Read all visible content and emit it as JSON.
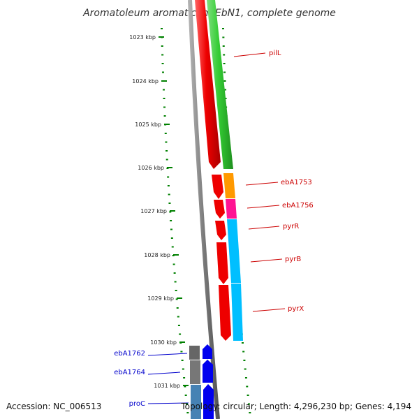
{
  "title": "Aromatoleum aromaticum EbN1, complete genome",
  "accession_text": "Accession: NC_006513",
  "summary_text": "Topology: circular; Length: 4,296,230 bp; Genes: 4,194",
  "ruler_ticks": [
    {
      "kbp": 1023,
      "label": "1023 kbp"
    },
    {
      "kbp": 1024,
      "label": "1024 kbp"
    },
    {
      "kbp": 1025,
      "label": "1025 kbp"
    },
    {
      "kbp": 1026,
      "label": "1026 kbp"
    },
    {
      "kbp": 1027,
      "label": "1027 kbp"
    },
    {
      "kbp": 1028,
      "label": "1028 kbp"
    },
    {
      "kbp": 1029,
      "label": "1029 kbp"
    },
    {
      "kbp": 1030,
      "label": "1030 kbp"
    },
    {
      "kbp": 1031,
      "label": "1031 kbp"
    }
  ],
  "gene_labels": [
    {
      "name": "pilL",
      "color": "#cc0000"
    },
    {
      "name": "ebA1753",
      "color": "#cc0000"
    },
    {
      "name": "ebA1756",
      "color": "#cc0000"
    },
    {
      "name": "pyrR",
      "color": "#cc0000"
    },
    {
      "name": "pyrB",
      "color": "#cc0000"
    },
    {
      "name": "pyrX",
      "color": "#cc0000"
    },
    {
      "name": "ebA1762",
      "color": "#0000cc"
    },
    {
      "name": "ebA1764",
      "color": "#0000cc"
    },
    {
      "name": "proC",
      "color": "#0000cc"
    }
  ],
  "colors": {
    "backbone": "#808080",
    "cds_red": "#ee0000",
    "green": "#33cc33",
    "orange": "#ff9900",
    "magenta": "#ff1493",
    "cyan": "#00bfff",
    "grey": "#666666",
    "blue": "#0000ee",
    "steel": "#4682b4",
    "gc_dots": "#008000"
  }
}
